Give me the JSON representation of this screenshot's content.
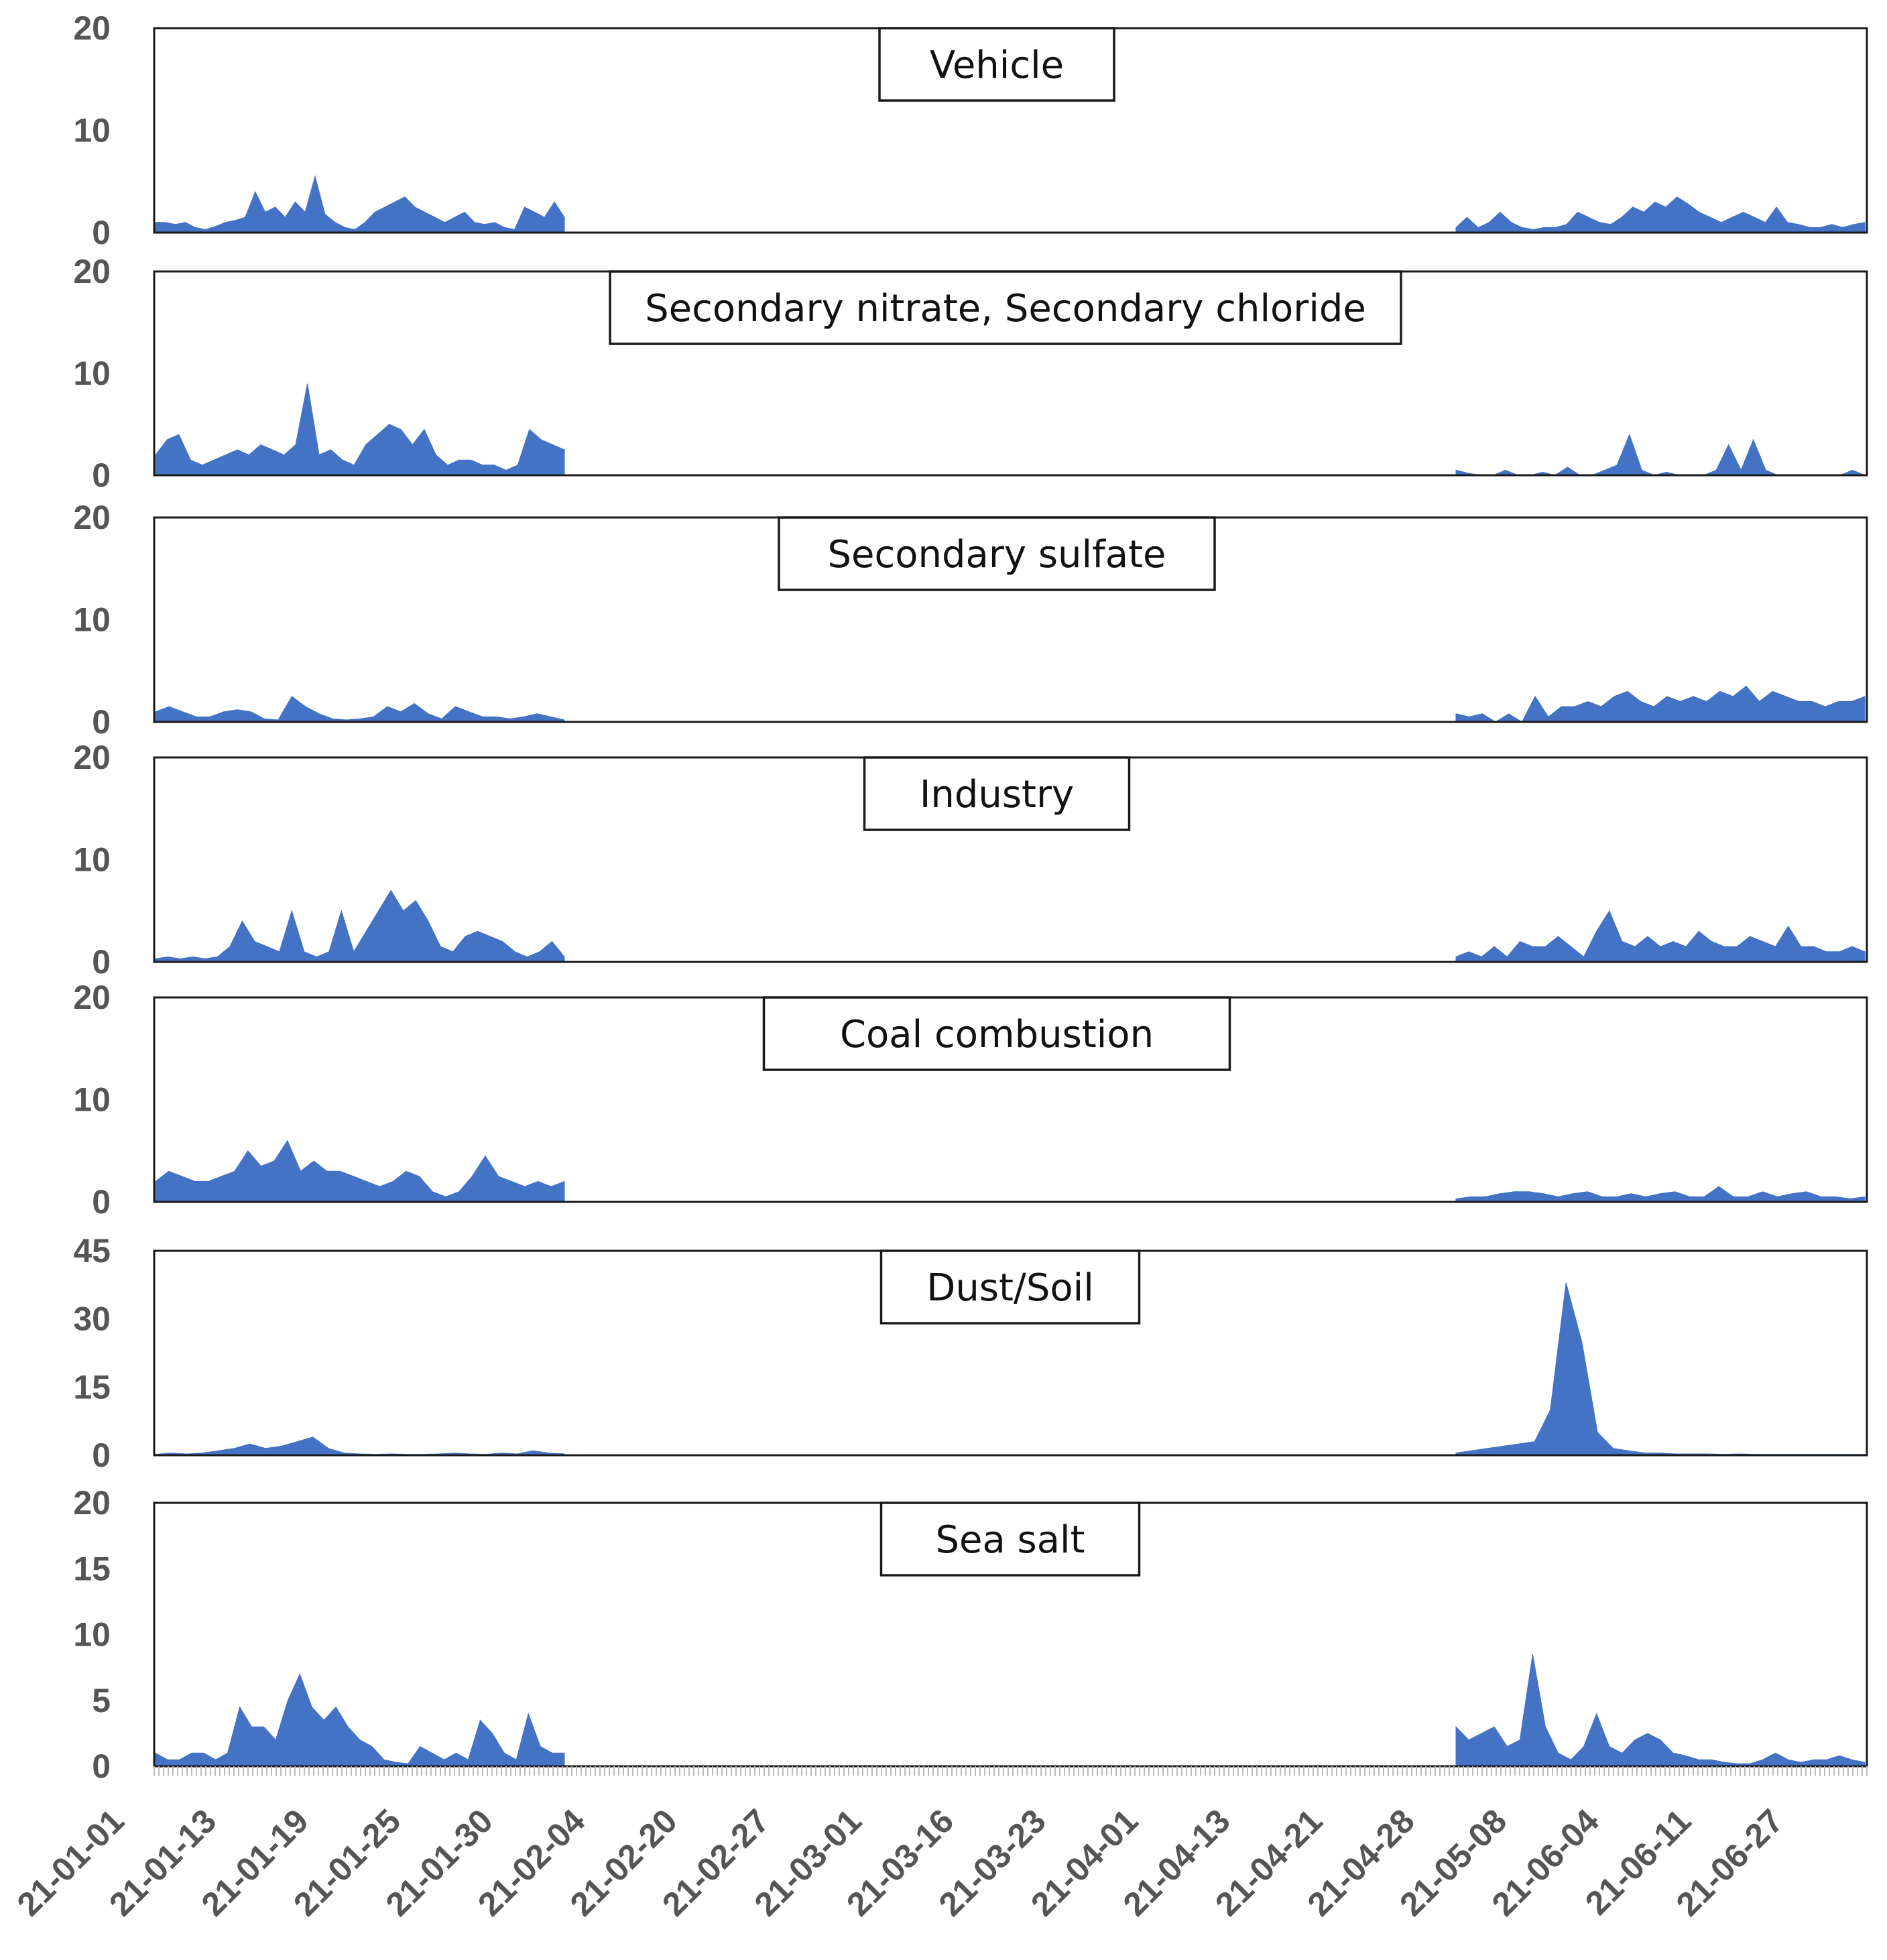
{
  "chart_data": {
    "type": "area",
    "xlabel": "",
    "ylabel": "",
    "x_tick_labels": [
      "21-01-01",
      "21-01-13",
      "21-01-19",
      "21-01-25",
      "21-01-30",
      "21-02-04",
      "21-02-20",
      "21-02-27",
      "21-03-01",
      "21-03-16",
      "21-03-23",
      "21-04-01",
      "21-04-13",
      "21-04-21",
      "21-04-28",
      "21-05-08",
      "21-06-04",
      "21-06-11",
      "21-06-27"
    ],
    "series_color": "#4472C4",
    "panels": [
      {
        "title": "Vehicle",
        "ylim": [
          0,
          20
        ],
        "yticks": [
          "0",
          "10",
          "20"
        ],
        "period1": [
          1,
          1,
          0.8,
          1,
          0.5,
          0.3,
          0.6,
          1,
          1.2,
          1.5,
          4,
          2,
          2.5,
          1.5,
          3,
          2,
          5.5,
          1.8,
          1,
          0.5,
          0.3,
          1,
          2,
          2.5,
          3,
          3.5,
          2.5,
          2,
          1.5,
          1,
          1.5,
          2,
          1,
          0.8,
          1,
          0.5,
          0.3,
          2.5,
          2,
          1.5,
          3,
          1.5
        ],
        "period2": [
          0.5,
          1.5,
          0.5,
          1,
          2,
          1,
          0.5,
          0.3,
          0.5,
          0.5,
          0.8,
          2,
          1.5,
          1,
          0.8,
          1.5,
          2.5,
          2,
          3,
          2.5,
          3.5,
          2.8,
          2,
          1.5,
          1,
          1.5,
          2,
          1.5,
          1,
          2.5,
          1,
          0.8,
          0.5,
          0.5,
          0.8,
          0.5,
          0.8,
          1
        ]
      },
      {
        "title": "Secondary nitrate, Secondary chloride",
        "ylim": [
          0,
          20
        ],
        "yticks": [
          "0",
          "10",
          "20"
        ],
        "period1": [
          2,
          3.5,
          4,
          1.5,
          1,
          1.5,
          2,
          2.5,
          2,
          3,
          2.5,
          2,
          3,
          9,
          2,
          2.5,
          1.5,
          1,
          3,
          4,
          5,
          4.5,
          3,
          4.5,
          2,
          1,
          1.5,
          1.5,
          1,
          1,
          0.5,
          1,
          4.5,
          3.5,
          3,
          2.5
        ],
        "period2": [
          0.5,
          0.2,
          0,
          0,
          0.5,
          0,
          0,
          0.3,
          0,
          0.8,
          0,
          0,
          0.5,
          1,
          4,
          0.5,
          0,
          0.3,
          0,
          0,
          0,
          0.5,
          3,
          0.5,
          3.5,
          0.5,
          0,
          0,
          0,
          0,
          0,
          0,
          0.5,
          0
        ]
      },
      {
        "title": "Secondary sulfate",
        "ylim": [
          0,
          20
        ],
        "yticks": [
          "0",
          "10",
          "20"
        ],
        "period1": [
          1,
          1.5,
          1,
          0.5,
          0.5,
          1,
          1.2,
          1,
          0.3,
          0.2,
          2.5,
          1.5,
          0.8,
          0.3,
          0.2,
          0.3,
          0.5,
          1.5,
          1,
          1.8,
          0.8,
          0.3,
          1.5,
          1,
          0.5,
          0.5,
          0.3,
          0.5,
          0.8,
          0.5,
          0.2
        ],
        "period2": [
          0.8,
          0.5,
          0.8,
          0,
          0.8,
          0,
          2.5,
          0.5,
          1.5,
          1.5,
          2,
          1.5,
          2.5,
          3,
          2,
          1.5,
          2.5,
          2,
          2.5,
          2,
          3,
          2.5,
          3.5,
          2,
          3,
          2.5,
          2,
          2,
          1.5,
          2,
          2,
          2.5
        ]
      },
      {
        "title": "Industry",
        "ylim": [
          0,
          20
        ],
        "yticks": [
          "0",
          "10",
          "20"
        ],
        "period1": [
          0.3,
          0.5,
          0.3,
          0.5,
          0.3,
          0.5,
          1.5,
          4,
          2,
          1.5,
          1,
          5,
          1,
          0.5,
          1,
          5,
          1,
          3,
          5,
          7,
          5,
          6,
          4,
          1.5,
          1,
          2.5,
          3,
          2.5,
          2,
          1,
          0.5,
          1,
          2,
          0.5
        ],
        "period2": [
          0.5,
          1,
          0.5,
          1.5,
          0.5,
          2,
          1.5,
          1.5,
          2.5,
          1.5,
          0.5,
          3,
          5,
          2,
          1.5,
          2.5,
          1.5,
          2,
          1.5,
          3,
          2,
          1.5,
          1.5,
          2.5,
          2,
          1.5,
          3.5,
          1.5,
          1.5,
          1,
          1,
          1.5,
          1
        ]
      },
      {
        "title": "Coal combustion",
        "ylim": [
          0,
          20
        ],
        "yticks": [
          "0",
          "10",
          "20"
        ],
        "period1": [
          2,
          3,
          2.5,
          2,
          2,
          2.5,
          3,
          5,
          3.5,
          4,
          6,
          3,
          4,
          3,
          3,
          2.5,
          2,
          1.5,
          2,
          3,
          2.5,
          1,
          0.5,
          1,
          2.5,
          4.5,
          2.5,
          2,
          1.5,
          2,
          1.5,
          2
        ],
        "period2": [
          0.3,
          0.5,
          0.5,
          0.8,
          1,
          1,
          0.8,
          0.5,
          0.8,
          1,
          0.5,
          0.5,
          0.8,
          0.5,
          0.8,
          1,
          0.5,
          0.5,
          1.5,
          0.5,
          0.5,
          1,
          0.5,
          0.8,
          1,
          0.5,
          0.5,
          0.3,
          0.5
        ]
      },
      {
        "title": "Dust/Soil",
        "ylim": [
          0,
          45
        ],
        "yticks": [
          "0",
          "15",
          "30",
          "45"
        ],
        "period1": [
          0.2,
          0.5,
          0.3,
          0.5,
          1,
          1.5,
          2.5,
          1.5,
          2,
          3,
          4,
          1.5,
          0.5,
          0.3,
          0.2,
          0.3,
          0.2,
          0.2,
          0.3,
          0.5,
          0.3,
          0.2,
          0.5,
          0.3,
          1,
          0.5,
          0.3
        ],
        "period2": [
          0.5,
          1,
          1.5,
          2,
          2.5,
          3,
          10,
          38,
          25,
          5,
          1.5,
          1,
          0.5,
          0.5,
          0.3,
          0.3,
          0.3,
          0.2,
          0.3,
          0.2,
          0.2,
          0.2,
          0.2,
          0.2,
          0.2,
          0.2,
          0.2
        ]
      },
      {
        "title": "Sea salt",
        "ylim": [
          0,
          20
        ],
        "yticks": [
          "0",
          "5",
          "10",
          "15",
          "20"
        ],
        "period1": [
          1,
          0.5,
          0.5,
          1,
          1,
          0.5,
          1,
          4.5,
          3,
          3,
          2,
          5,
          7,
          4.5,
          3.5,
          4.5,
          3,
          2,
          1.5,
          0.5,
          0.3,
          0.2,
          1.5,
          1,
          0.5,
          1,
          0.5,
          3.5,
          2.5,
          1,
          0.5,
          4,
          1.5,
          1,
          1
        ],
        "period2": [
          3,
          2,
          2.5,
          3,
          1.5,
          2,
          8.5,
          3,
          1,
          0.5,
          1.5,
          4,
          1.5,
          1,
          2,
          2.5,
          2,
          1,
          0.8,
          0.5,
          0.5,
          0.3,
          0.2,
          0.2,
          0.5,
          1,
          0.5,
          0.3,
          0.5,
          0.5,
          0.8,
          0.5,
          0.3
        ]
      }
    ]
  }
}
